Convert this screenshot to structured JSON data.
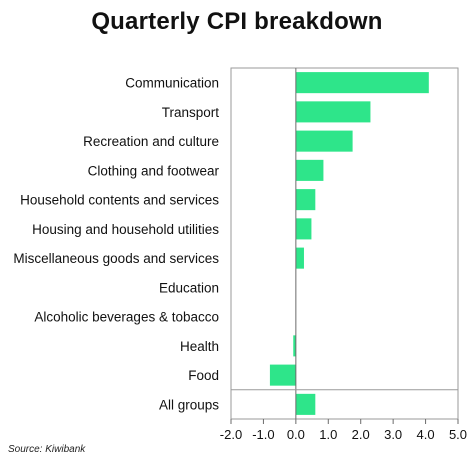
{
  "chart_data": {
    "type": "bar",
    "orientation": "horizontal",
    "title": "Quarterly CPI breakdown",
    "categories": [
      "Communication",
      "Transport",
      "Recreation and culture",
      "Clothing and footwear",
      "Household contents and services",
      "Housing and household utilities",
      "Miscellaneous goods and services",
      "Education",
      "Alcoholic beverages & tobacco",
      "Health",
      "Food",
      "All groups"
    ],
    "values": [
      4.1,
      2.3,
      1.75,
      0.85,
      0.6,
      0.48,
      0.25,
      0.0,
      0.0,
      -0.08,
      -0.8,
      0.6
    ],
    "xlim": [
      -2.0,
      5.0
    ],
    "xticks": [
      "-2.0",
      "-1.0",
      "0.0",
      "1.0",
      "2.0",
      "3.0",
      "4.0",
      "5.0"
    ],
    "xtick_values": [
      -2,
      -1,
      0,
      1,
      2,
      3,
      4,
      5
    ],
    "bar_color": "#2ee58a",
    "grid": false,
    "legend": "none"
  },
  "source": "Source: Kiwibank"
}
